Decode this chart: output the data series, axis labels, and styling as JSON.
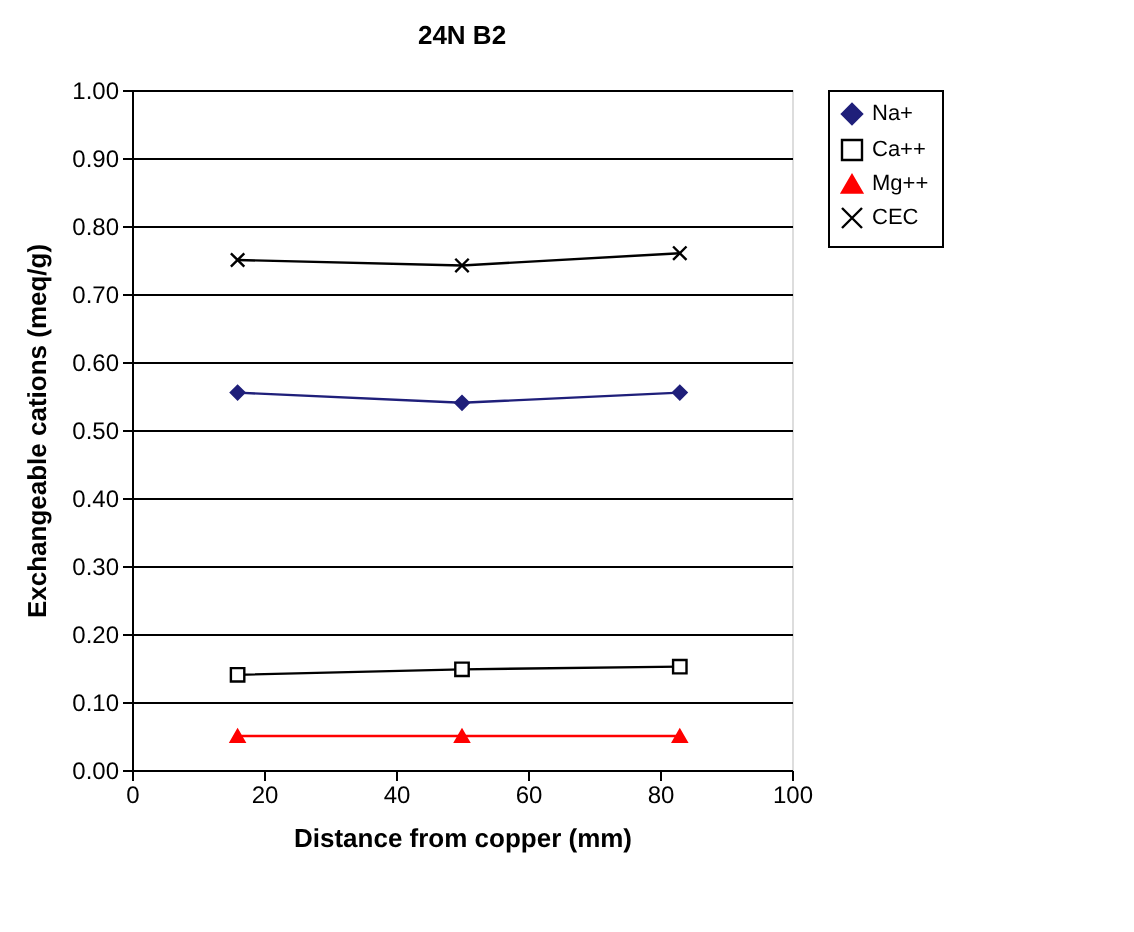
{
  "chart_data": {
    "type": "line",
    "title": "24N B2",
    "xlabel": "Distance from copper  (mm)",
    "ylabel": "Exchangeable cations  (meq/g)",
    "x": [
      16,
      50,
      83
    ],
    "series": [
      {
        "name": "Na+",
        "color": "#1f1f7a",
        "marker": "diamond",
        "values": [
          0.555,
          0.54,
          0.555
        ]
      },
      {
        "name": "Ca++",
        "color": "#000000",
        "marker": "square",
        "values": [
          0.14,
          0.148,
          0.152
        ]
      },
      {
        "name": "Mg++",
        "color": "#ff0000",
        "marker": "triangle",
        "values": [
          0.05,
          0.05,
          0.05
        ]
      },
      {
        "name": "CEC",
        "color": "#000000",
        "marker": "cross",
        "values": [
          0.75,
          0.742,
          0.76
        ]
      }
    ],
    "xlim": [
      0,
      100
    ],
    "xticks": [
      0,
      20,
      40,
      60,
      80,
      100
    ],
    "ylim": [
      0,
      1
    ],
    "yticks": [
      {
        "value": 0,
        "label": "0.00"
      },
      {
        "value": 0.1,
        "label": "0.10"
      },
      {
        "value": 0.2,
        "label": "0.20"
      },
      {
        "value": 0.3,
        "label": "0.30"
      },
      {
        "value": 0.4,
        "label": "0.40"
      },
      {
        "value": 0.5,
        "label": "0.50"
      },
      {
        "value": 0.6,
        "label": "0.60"
      },
      {
        "value": 0.7,
        "label": "0.70"
      },
      {
        "value": 0.8,
        "label": "0.80"
      },
      {
        "value": 0.9,
        "label": "0.90"
      },
      {
        "value": 1.0,
        "label": "1.00"
      }
    ],
    "grid": "y",
    "legend": "right",
    "line_style": "solid"
  }
}
